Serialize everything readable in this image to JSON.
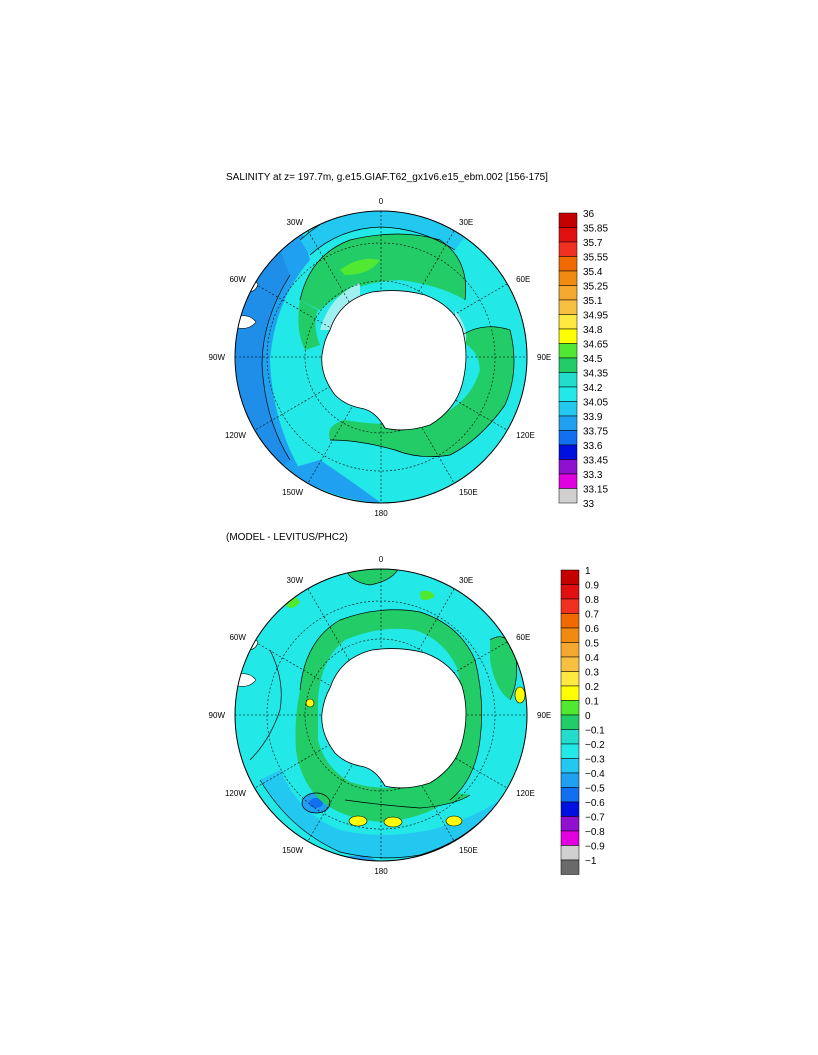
{
  "panels": [
    {
      "id": "top",
      "title": "SALINITY at z= 197.7m, g.e15.GIAF.T62_gx1v6.e15_ebm.002 [156-175]",
      "lon_labels": [
        "0",
        "30E",
        "60E",
        "90E",
        "120E",
        "150E",
        "180",
        "150W",
        "120W",
        "90W",
        "60W",
        "30W"
      ],
      "colorbar": {
        "labels": [
          "36",
          "35.85",
          "35.7",
          "35.55",
          "35.4",
          "35.25",
          "35.1",
          "34.95",
          "34.8",
          "34.65",
          "34.5",
          "34.35",
          "34.2",
          "34.05",
          "33.9",
          "33.75",
          "33.6",
          "33.45",
          "33.3",
          "33.15",
          "33"
        ],
        "colors": [
          "#c40000",
          "#e01010",
          "#f03020",
          "#f06a00",
          "#f08a10",
          "#f5a830",
          "#f8c040",
          "#ffe840",
          "#ffff00",
          "#50e830",
          "#22cc66",
          "#22ddcc",
          "#22e8e8",
          "#22c8f0",
          "#20a0f0",
          "#1070f0",
          "#0010e0",
          "#9010d0",
          "#e000e0",
          "#d0d0d0"
        ]
      }
    },
    {
      "id": "bottom",
      "title": "(MODEL - LEVITUS/PHC2)",
      "lon_labels": [
        "0",
        "30E",
        "60E",
        "90E",
        "120E",
        "150E",
        "180",
        "150W",
        "120W",
        "90W",
        "60W",
        "30W"
      ],
      "colorbar": {
        "labels": [
          "1",
          "0.9",
          "0.8",
          "0.7",
          "0.6",
          "0.5",
          "0.4",
          "0.3",
          "0.2",
          "0.1",
          "0",
          "−0.1",
          "−0.2",
          "−0.3",
          "−0.4",
          "−0.5",
          "−0.6",
          "−0.7",
          "−0.8",
          "−0.9",
          "−1"
        ],
        "colors": [
          "#c40000",
          "#e01010",
          "#f03020",
          "#f06a00",
          "#f08a10",
          "#f5a830",
          "#f8c040",
          "#ffe840",
          "#ffff00",
          "#50e830",
          "#22cc66",
          "#22ddcc",
          "#22e8e8",
          "#22c8f0",
          "#20a0f0",
          "#1070f0",
          "#0010e0",
          "#9010d0",
          "#e000e0",
          "#d0d0d0",
          "#6a6a6a"
        ]
      }
    }
  ]
}
